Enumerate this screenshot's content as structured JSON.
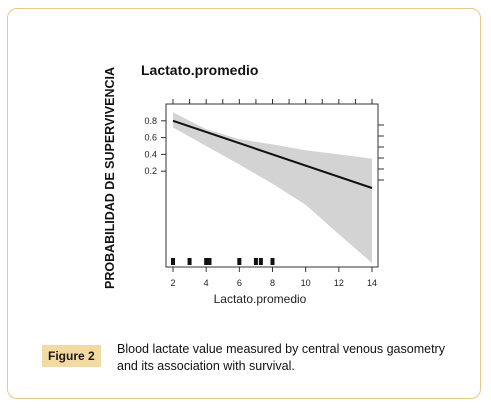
{
  "chart_data": {
    "type": "line",
    "title": "Lactato.promedio",
    "xlabel": "Lactato.promedio",
    "ylabel": "PROBABILIDAD DE SUPERVIVENCIA",
    "x_ticks": [
      2,
      4,
      6,
      8,
      10,
      12,
      14
    ],
    "y_ticks": [
      0.2,
      0.4,
      0.6,
      0.8
    ],
    "xlim": [
      2,
      14
    ],
    "series": [
      {
        "x": [
          2,
          14
        ],
        "y": [
          0.8,
          0.0
        ]
      }
    ],
    "band": {
      "x": [
        2,
        4,
        6,
        8,
        10,
        12,
        14
      ],
      "upper": [
        0.9,
        0.7,
        0.58,
        0.52,
        0.45,
        0.4,
        0.35
      ],
      "lower": [
        0.72,
        0.5,
        0.28,
        0.05,
        -0.2,
        -0.55,
        -0.9
      ]
    },
    "rug": [
      2,
      3,
      4,
      4.2,
      6,
      7,
      7.3,
      8
    ],
    "colors": {
      "line": "#111111",
      "band": "#d3d3d3"
    },
    "grid": false
  },
  "caption": {
    "label": "Figure 2",
    "text": "Blood lactate value measured by central venous gasometry and its association with survival."
  }
}
